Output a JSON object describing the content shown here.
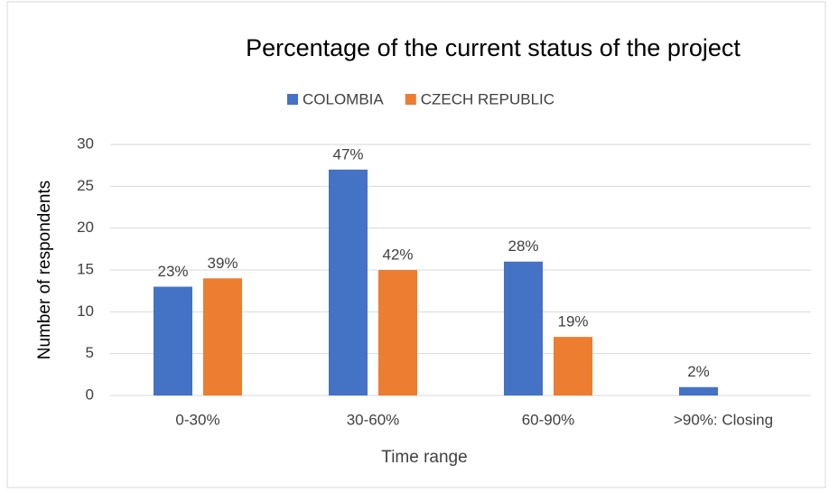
{
  "chart_data": {
    "type": "bar",
    "title": "Percentage of the current status of the project",
    "x_label": "Time range",
    "y_label": "Number of respondents",
    "categories": [
      "0-30%",
      "30-60%",
      "60-90%",
      ">90%: Closing"
    ],
    "series": [
      {
        "name": "COLOMBIA",
        "color": "#4472c4",
        "values": [
          13,
          27,
          16,
          1
        ],
        "labels": [
          "23%",
          "47%",
          "28%",
          "2%"
        ]
      },
      {
        "name": "CZECH REPUBLIC",
        "color": "#ed7d31",
        "values": [
          14,
          15,
          7,
          0
        ],
        "labels": [
          "39%",
          "42%",
          "19%",
          null
        ]
      }
    ],
    "ylim": [
      0,
      30
    ],
    "yticks": [
      0,
      5,
      10,
      15,
      20,
      25,
      30
    ],
    "grid": true,
    "legend": "top"
  }
}
